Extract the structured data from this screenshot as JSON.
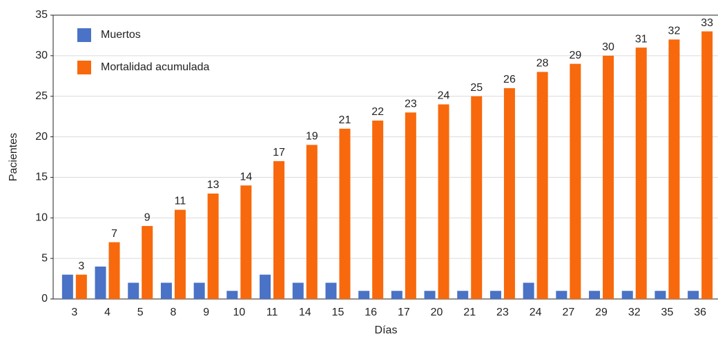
{
  "chart_data": {
    "type": "bar",
    "x_label": "Días",
    "y_label": "Pacientes",
    "categories": [
      "3",
      "4",
      "5",
      "8",
      "9",
      "10",
      "11",
      "14",
      "15",
      "16",
      "17",
      "20",
      "21",
      "23",
      "24",
      "27",
      "29",
      "32",
      "35",
      "36"
    ],
    "series": [
      {
        "name": "Muertos",
        "color": "#4a72c6",
        "values": [
          3,
          4,
          2,
          2,
          2,
          1,
          3,
          2,
          2,
          1,
          1,
          1,
          1,
          1,
          2,
          1,
          1,
          1,
          1,
          1
        ]
      },
      {
        "name": "Mortalidad acumulada",
        "color": "#f7690c",
        "values": [
          3,
          7,
          9,
          11,
          13,
          14,
          17,
          19,
          21,
          22,
          23,
          24,
          25,
          26,
          28,
          29,
          30,
          31,
          32,
          33
        ],
        "data_labels": true
      }
    ],
    "ylim": [
      0,
      35
    ],
    "yticks": [
      0,
      5,
      10,
      15,
      20,
      25,
      30,
      35
    ],
    "grid": true,
    "legend": "upper left"
  }
}
